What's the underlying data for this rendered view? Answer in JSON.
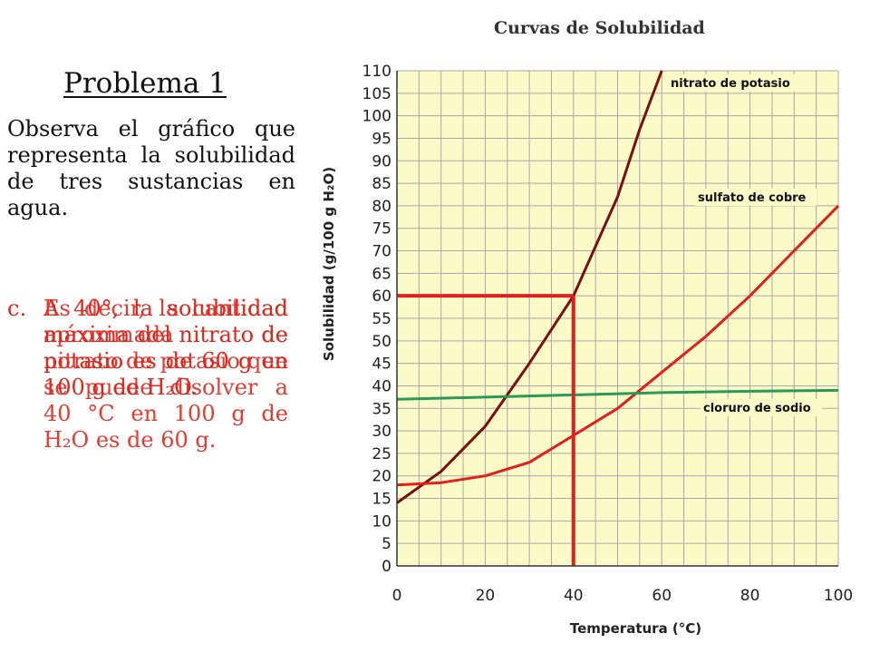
{
  "slide": {
    "title": "Problema 1",
    "intro": "Observa el gráfico que representa la solubilidad de tres sustancias en agua.",
    "answer_letter": "c.",
    "answer_line_1": "A 40°, la solubilidad máxima del nitrato de potasio es de 60 g en 100 g de H₂O.",
    "answer_line_2": "Es decir, la cantidad aproximada de nitrato de potasio que se puede disolver a 40 °C en 100 g de H₂O es de 60 g."
  },
  "colors": {
    "plot_background": "#fbfbc8",
    "grid": "#a8a8a8",
    "nitrato": "#7a0f0f",
    "sulfato": "#e21e1e",
    "cloruro": "#2a9a5a",
    "highlight": "#e21e1e",
    "answer_text": "#e2261c"
  },
  "chart_data": {
    "type": "line",
    "title": "Curvas de Solubilidad",
    "xlabel": "Temperatura (°C)",
    "ylabel": "Solubilidad (g/100 g H₂O)",
    "xlim": [
      0,
      100
    ],
    "ylim": [
      0,
      110
    ],
    "x_ticks": [
      0,
      20,
      40,
      60,
      80,
      100
    ],
    "y_ticks": [
      0,
      5,
      10,
      15,
      20,
      25,
      30,
      35,
      40,
      45,
      50,
      55,
      60,
      65,
      70,
      75,
      80,
      85,
      90,
      95,
      100,
      105,
      110
    ],
    "grid": true,
    "series": [
      {
        "name": "nitrato de potasio",
        "x": [
          0,
          10,
          20,
          30,
          40,
          50,
          55,
          60
        ],
        "values": [
          14,
          21,
          31,
          45,
          60,
          82,
          97,
          110
        ]
      },
      {
        "name": "sulfato de cobre",
        "x": [
          0,
          10,
          20,
          30,
          40,
          50,
          60,
          70,
          80,
          90,
          100
        ],
        "values": [
          18,
          18.5,
          20,
          23,
          29,
          35,
          43,
          51,
          60,
          70,
          80
        ]
      },
      {
        "name": "cloruro de sodio",
        "x": [
          0,
          20,
          40,
          60,
          80,
          100
        ],
        "values": [
          37,
          37.5,
          38,
          38.5,
          38.8,
          39
        ]
      }
    ],
    "annotations": [
      {
        "type": "guide",
        "x": 40,
        "y": 60
      }
    ]
  }
}
